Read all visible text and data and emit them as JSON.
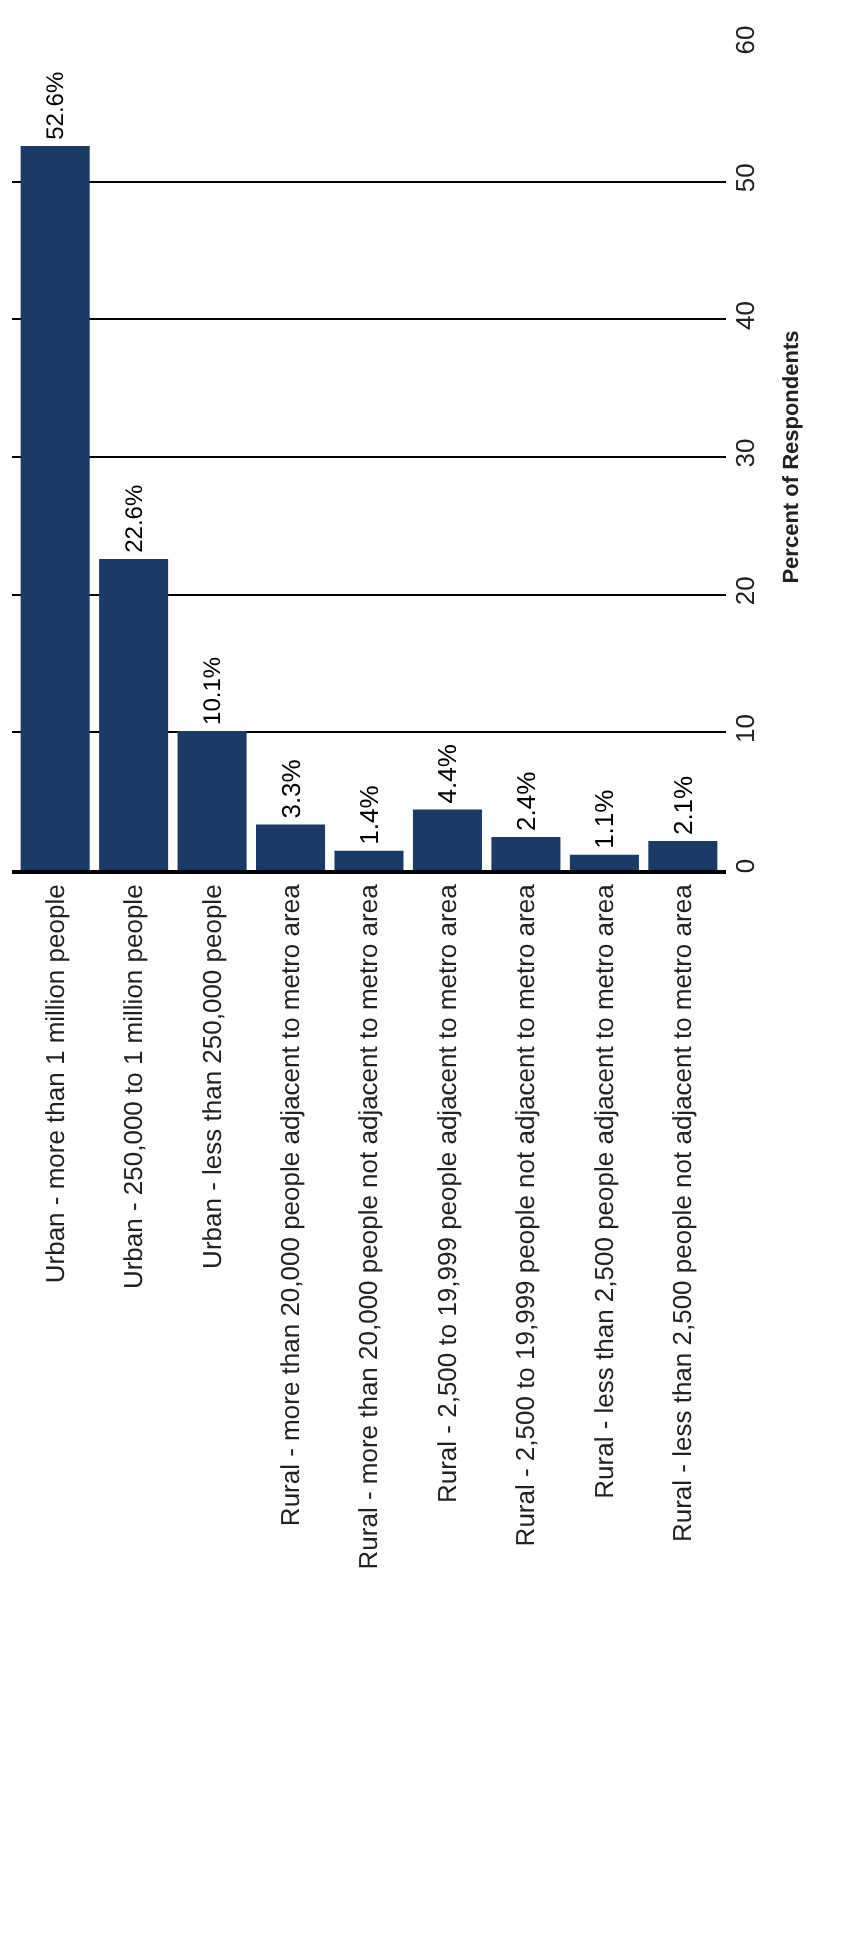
{
  "chart_data": {
    "type": "bar",
    "ylabel": "Percent of Respondents",
    "categories": [
      "Urban - more than 1 million people",
      "Urban - 250,000 to 1 million people",
      "Urban - less than 250,000 people",
      "Rural - more than 20,000 people adjacent to metro area",
      "Rural - more than 20,000 people not adjacent to metro area",
      "Rural - 2,500 to 19,999 people adjacent to metro area",
      "Rural - 2,500 to 19,999 people not adjacent to metro area",
      "Rural - less than 2,500 people adjacent to metro area",
      "Rural - less than 2,500 people not adjacent to metro area"
    ],
    "values": [
      52.6,
      22.6,
      10.1,
      3.3,
      1.4,
      4.4,
      2.4,
      1.1,
      2.1
    ],
    "value_labels": [
      "52.6%",
      "22.6%",
      "10.1%",
      "3.3%",
      "1.4%",
      "4.4%",
      "2.4%",
      "1.1%",
      "2.1%"
    ],
    "color": "#1b3a66",
    "ylim": [
      0,
      60
    ],
    "yticks": [
      0,
      10,
      20,
      30,
      40,
      50,
      60
    ],
    "grid": "y"
  }
}
